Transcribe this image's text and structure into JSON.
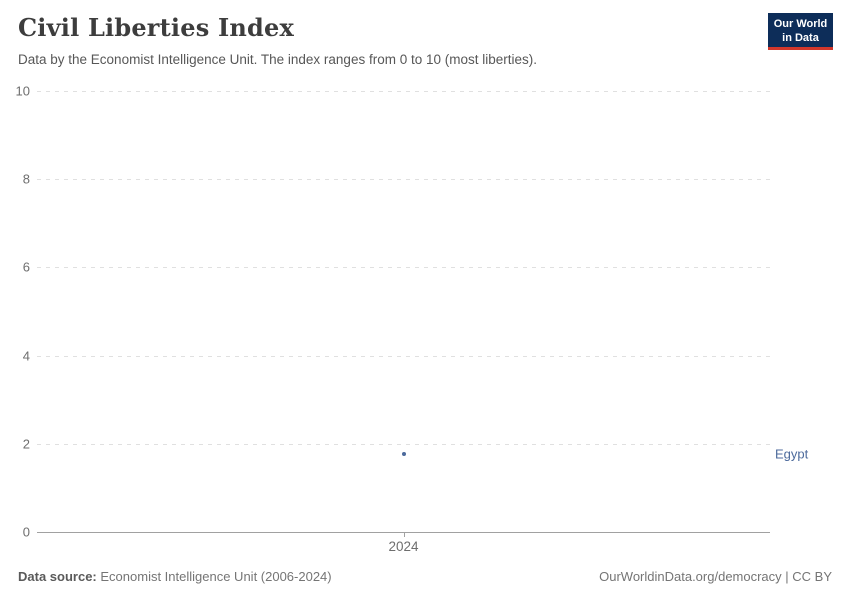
{
  "header": {
    "title": "Civil Liberties Index",
    "subtitle": "Data by the Economist Intelligence Unit. The index ranges from 0 to 10 (most liberties).",
    "logo": {
      "line1": "Our World",
      "line2": "in Data",
      "background_color": "#0d2d59",
      "accent_color": "#d3372b"
    }
  },
  "chart_data": {
    "type": "scatter",
    "title": "Civil Liberties Index",
    "categories": [
      2024
    ],
    "series": [
      {
        "name": "Egypt",
        "values": [
          {
            "x": 2024,
            "y": 1.76
          }
        ],
        "color": "#4c6a9c"
      }
    ],
    "xlabel": "",
    "ylabel": "",
    "ylim": [
      0,
      10
    ],
    "yticks": [
      0,
      2,
      4,
      6,
      8,
      10
    ],
    "xticks": [
      "2024"
    ],
    "grid": "horizontal-dashed",
    "legend_position": "right-entity-label",
    "entity_label": "Egypt",
    "entity_label_color": "#4c6a9c"
  },
  "footer": {
    "datasource_label": "Data source:",
    "datasource_value": "Economist Intelligence Unit (2006-2024)",
    "credit": "OurWorldinData.org/democracy | CC BY"
  }
}
